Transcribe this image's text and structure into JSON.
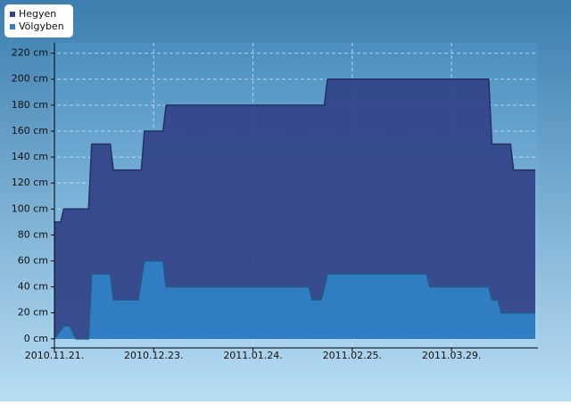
{
  "chart_data": {
    "type": "area",
    "x_format": "date",
    "xlim": [
      "2010.11.21",
      "2011.04.25"
    ],
    "xticks": [
      {
        "value": "2010.11.21",
        "label": "2010.11.21."
      },
      {
        "value": "2010.12.23",
        "label": "2010.12.23."
      },
      {
        "value": "2011.01.24",
        "label": "2011.01.24."
      },
      {
        "value": "2011.02.25",
        "label": "2011.02.25."
      },
      {
        "value": "2011.03.29",
        "label": "2011.03.29."
      }
    ],
    "ylim": [
      -7,
      228
    ],
    "yticks": [
      {
        "value": 0,
        "label": "0 cm"
      },
      {
        "value": 20,
        "label": "20 cm"
      },
      {
        "value": 40,
        "label": "40 cm"
      },
      {
        "value": 60,
        "label": "60 cm"
      },
      {
        "value": 80,
        "label": "80 cm"
      },
      {
        "value": 100,
        "label": "100 cm"
      },
      {
        "value": 120,
        "label": "120 cm"
      },
      {
        "value": 140,
        "label": "140 cm"
      },
      {
        "value": 160,
        "label": "160 cm"
      },
      {
        "value": 180,
        "label": "180 cm"
      },
      {
        "value": 200,
        "label": "200 cm"
      },
      {
        "value": 220,
        "label": "220 cm"
      }
    ],
    "grid": true,
    "legend": "top-left",
    "series": [
      {
        "name": "Hegyen",
        "color": "#34448a",
        "x": [
          "2010.11.21",
          "2010.11.23",
          "2010.11.24",
          "2010.12.02",
          "2010.12.03",
          "2010.12.09",
          "2010.12.10",
          "2010.12.19",
          "2010.12.20",
          "2010.12.26",
          "2010.12.27",
          "2011.02.16",
          "2011.02.17",
          "2011.04.10",
          "2011.04.11",
          "2011.04.17",
          "2011.04.18",
          "2011.04.25"
        ],
        "values": [
          90,
          90,
          100,
          100,
          150,
          150,
          130,
          130,
          160,
          160,
          180,
          180,
          200,
          200,
          150,
          150,
          130,
          130
        ]
      },
      {
        "name": "Völgyben",
        "color": "#2f80c4",
        "x": [
          "2010.11.21",
          "2010.11.24",
          "2010.11.26",
          "2010.11.28",
          "2010.12.02",
          "2010.12.03",
          "2010.12.09",
          "2010.12.10",
          "2010.12.18",
          "2010.12.20",
          "2010.12.26",
          "2010.12.27",
          "2011.02.11",
          "2011.02.12",
          "2011.02.15",
          "2011.02.17",
          "2011.03.21",
          "2011.03.22",
          "2011.04.10",
          "2011.04.11",
          "2011.04.13",
          "2011.04.14",
          "2011.04.25"
        ],
        "values": [
          0,
          10,
          10,
          0,
          0,
          50,
          50,
          30,
          30,
          60,
          60,
          40,
          40,
          30,
          30,
          50,
          50,
          40,
          40,
          30,
          30,
          20,
          20
        ]
      }
    ]
  }
}
